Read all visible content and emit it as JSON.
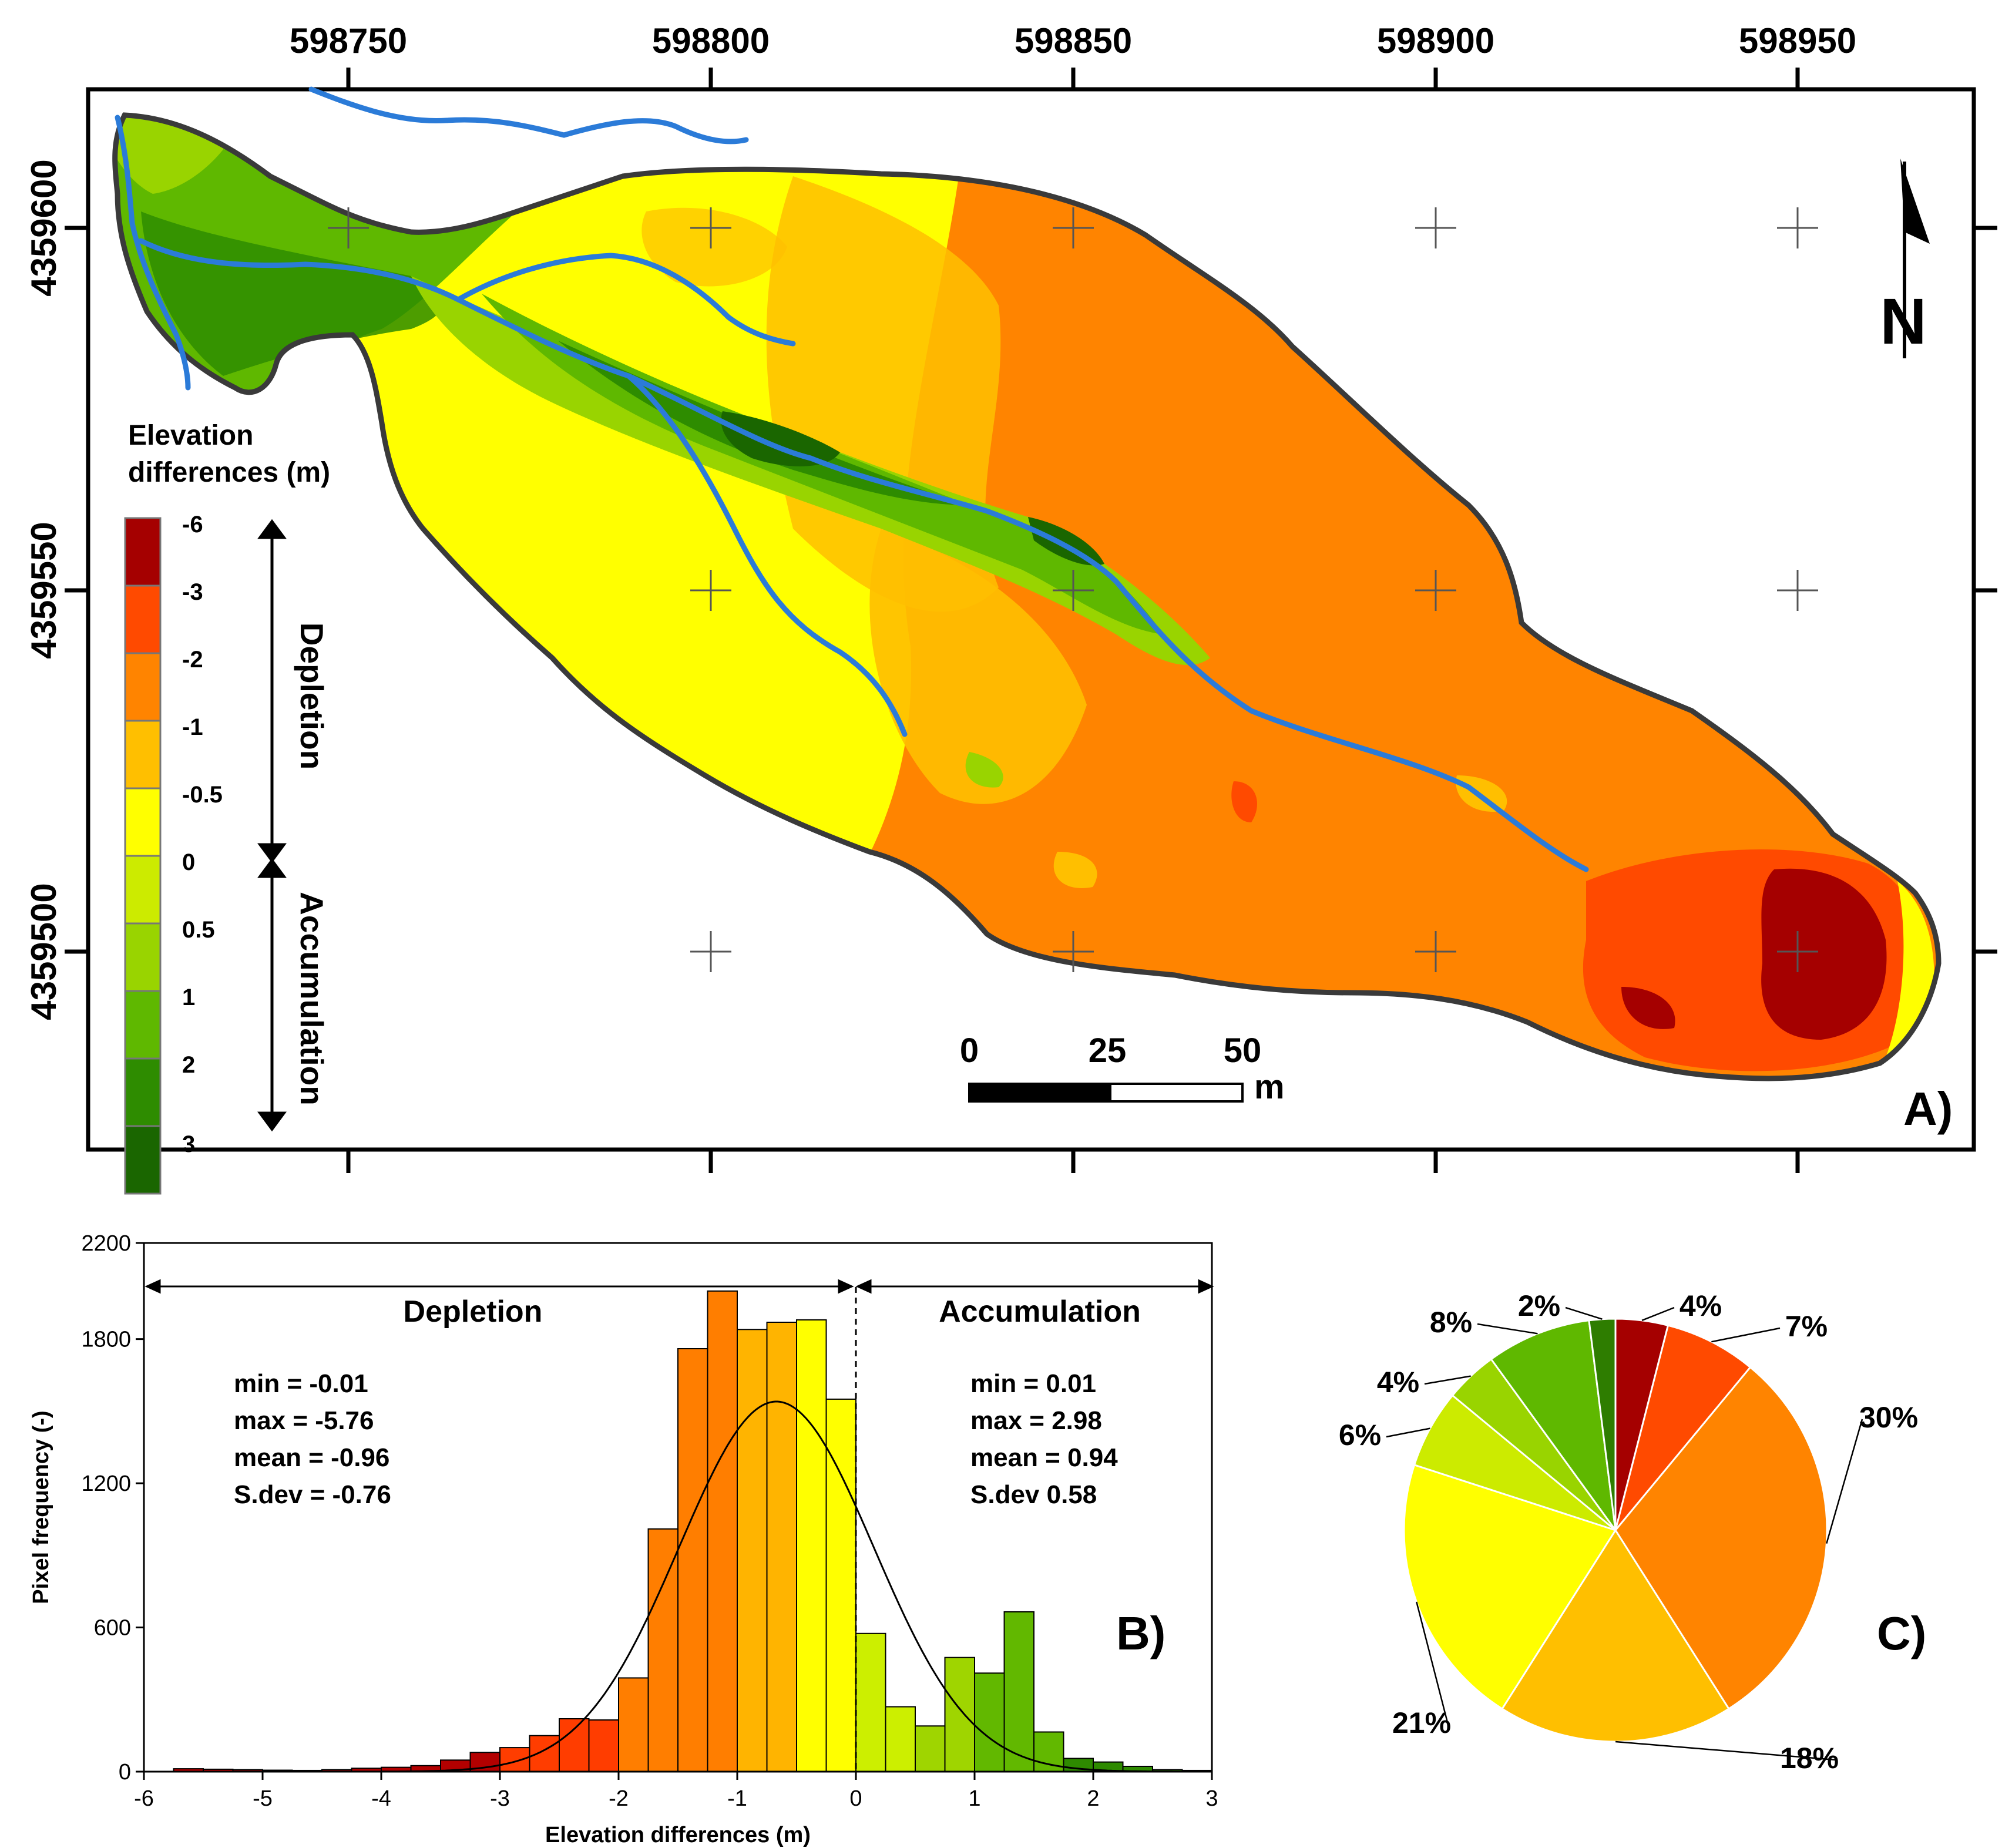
{
  "map": {
    "panel_label": "A)",
    "x_ticks": [
      "598750",
      "598800",
      "598850",
      "598900",
      "598950"
    ],
    "y_ticks": [
      "4359600",
      "4359550",
      "4359500"
    ],
    "legend": {
      "title_line1": "Elevation",
      "title_line2": "differences (m)",
      "class_labels": [
        "-6",
        "-3",
        "-2",
        "-1",
        "-0.5",
        "0",
        "0.5",
        "1",
        "2",
        "3"
      ],
      "class_colors": [
        "#a50000",
        "#ff4a00",
        "#ff8400",
        "#ffbf00",
        "#ffff00",
        "#cceb00",
        "#99d400",
        "#5fb800",
        "#2e8c00",
        "#1a6600"
      ],
      "depletion_label": "Depletion",
      "accumulation_label": "Accumulation"
    },
    "scalebar": {
      "labels": [
        "0",
        "25",
        "50"
      ],
      "unit": "m"
    },
    "north_label": "N",
    "colors": {
      "stream": "#2b7bd8",
      "outline": "#3a3a3a"
    }
  },
  "histogram": {
    "panel_label": "B)",
    "depletion_label": "Depletion",
    "accumulation_label": "Accumulation",
    "depletion_stats": [
      "min = -0.01",
      "max = -5.76",
      "mean = -0.96",
      "S.dev = -0.76"
    ],
    "accumulation_stats": [
      "min = 0.01",
      "max = 2.98",
      "mean = 0.94",
      "S.dev 0.58"
    ]
  },
  "pie": {
    "panel_label": "C)"
  },
  "chart_data": [
    {
      "type": "bar",
      "title": "",
      "xlabel": "Elevation differences (m)",
      "ylabel": "Pixel frequency (-)",
      "xlim": [
        -6,
        3
      ],
      "ylim": [
        0,
        2200
      ],
      "x_ticks": [
        -6,
        -5,
        -4,
        -3,
        -2,
        -1,
        0,
        1,
        2,
        3
      ],
      "y_ticks": [
        0,
        600,
        1200,
        1800,
        2200
      ],
      "bin_width": 0.25,
      "bins": [
        {
          "x0": -5.75,
          "x1": -5.5,
          "value": 12,
          "color": "#b30000"
        },
        {
          "x0": -5.5,
          "x1": -5.25,
          "value": 10,
          "color": "#b30000"
        },
        {
          "x0": -5.25,
          "x1": -5.0,
          "value": 8,
          "color": "#b30000"
        },
        {
          "x0": -5.0,
          "x1": -4.75,
          "value": 6,
          "color": "#b30000"
        },
        {
          "x0": -4.75,
          "x1": -4.5,
          "value": 5,
          "color": "#b30000"
        },
        {
          "x0": -4.5,
          "x1": -4.25,
          "value": 8,
          "color": "#b30000"
        },
        {
          "x0": -4.25,
          "x1": -4.0,
          "value": 14,
          "color": "#b30000"
        },
        {
          "x0": -4.0,
          "x1": -3.75,
          "value": 18,
          "color": "#b30000"
        },
        {
          "x0": -3.75,
          "x1": -3.5,
          "value": 25,
          "color": "#b30000"
        },
        {
          "x0": -3.5,
          "x1": -3.25,
          "value": 48,
          "color": "#b30000"
        },
        {
          "x0": -3.25,
          "x1": -3.0,
          "value": 80,
          "color": "#b30000"
        },
        {
          "x0": -3.0,
          "x1": -2.75,
          "value": 100,
          "color": "#ff3d00"
        },
        {
          "x0": -2.75,
          "x1": -2.5,
          "value": 150,
          "color": "#ff3d00"
        },
        {
          "x0": -2.5,
          "x1": -2.25,
          "value": 220,
          "color": "#ff3d00"
        },
        {
          "x0": -2.25,
          "x1": -2.0,
          "value": 215,
          "color": "#ff3d00"
        },
        {
          "x0": -2.0,
          "x1": -1.75,
          "value": 390,
          "color": "#ff7e00"
        },
        {
          "x0": -1.75,
          "x1": -1.5,
          "value": 1010,
          "color": "#ff7e00"
        },
        {
          "x0": -1.5,
          "x1": -1.25,
          "value": 1760,
          "color": "#ff7e00"
        },
        {
          "x0": -1.25,
          "x1": -1.0,
          "value": 2000,
          "color": "#ff7e00"
        },
        {
          "x0": -1.0,
          "x1": -0.75,
          "value": 1840,
          "color": "#ffb400"
        },
        {
          "x0": -0.75,
          "x1": -0.5,
          "value": 1870,
          "color": "#ffb400"
        },
        {
          "x0": -0.5,
          "x1": -0.25,
          "value": 1880,
          "color": "#ffff00"
        },
        {
          "x0": -0.25,
          "x1": 0.0,
          "value": 1550,
          "color": "#ffff00"
        },
        {
          "x0": 0.0,
          "x1": 0.25,
          "value": 575,
          "color": "#ccef00"
        },
        {
          "x0": 0.25,
          "x1": 0.5,
          "value": 270,
          "color": "#ccef00"
        },
        {
          "x0": 0.5,
          "x1": 0.75,
          "value": 190,
          "color": "#9fd500"
        },
        {
          "x0": 0.75,
          "x1": 1.0,
          "value": 475,
          "color": "#9fd500"
        },
        {
          "x0": 1.0,
          "x1": 1.25,
          "value": 410,
          "color": "#62b800"
        },
        {
          "x0": 1.25,
          "x1": 1.5,
          "value": 665,
          "color": "#62b800"
        },
        {
          "x0": 1.5,
          "x1": 1.75,
          "value": 165,
          "color": "#62b800"
        },
        {
          "x0": 1.75,
          "x1": 2.0,
          "value": 55,
          "color": "#2e8a00"
        },
        {
          "x0": 2.0,
          "x1": 2.25,
          "value": 40,
          "color": "#2e8a00"
        },
        {
          "x0": 2.25,
          "x1": 2.5,
          "value": 22,
          "color": "#2e8a00"
        },
        {
          "x0": 2.5,
          "x1": 2.75,
          "value": 8,
          "color": "#2e8a00"
        },
        {
          "x0": 2.75,
          "x1": 3.0,
          "value": 5,
          "color": "#2e8a00"
        }
      ],
      "normal_curve": {
        "mean": -0.67,
        "sd": 0.82,
        "peak": 1540
      },
      "divider_x": 0
    },
    {
      "type": "pie",
      "title": "",
      "slices": [
        {
          "label": "4%",
          "value": 4,
          "color": "#a50000"
        },
        {
          "label": "7%",
          "value": 7,
          "color": "#ff4a00"
        },
        {
          "label": "30%",
          "value": 30,
          "color": "#ff8400"
        },
        {
          "label": "18%",
          "value": 18,
          "color": "#ffbf00"
        },
        {
          "label": "21%",
          "value": 21,
          "color": "#ffff00"
        },
        {
          "label": "6%",
          "value": 6,
          "color": "#cceb00"
        },
        {
          "label": "4%",
          "value": 4,
          "color": "#99d400"
        },
        {
          "label": "8%",
          "value": 8,
          "color": "#5fb800"
        },
        {
          "label": "2%",
          "value": 2,
          "color": "#2e7d00"
        }
      ]
    }
  ]
}
